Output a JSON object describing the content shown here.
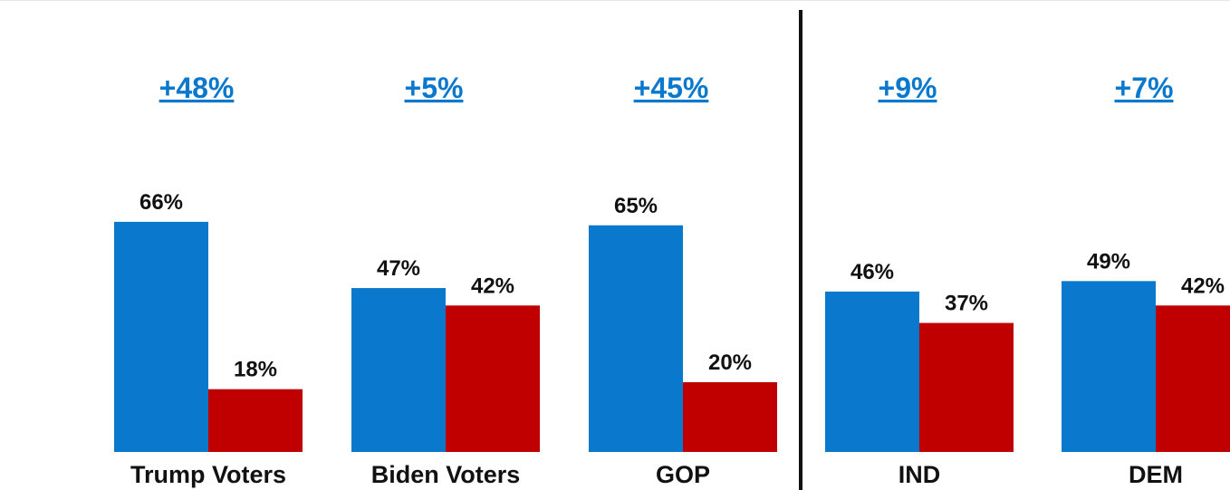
{
  "chart_data": {
    "type": "bar",
    "categories": [
      "Trump Voters",
      "Biden Voters",
      "GOP",
      "IND",
      "DEM"
    ],
    "series": [
      {
        "values": [
          66,
          47,
          65,
          46,
          49
        ],
        "labels": [
          "66%",
          "47%",
          "65%",
          "46%",
          "49%"
        ]
      },
      {
        "values": [
          18,
          42,
          20,
          37,
          42
        ],
        "labels": [
          "18%",
          "42%",
          "20%",
          "37%",
          "42%"
        ]
      }
    ],
    "differences": [
      "+48%",
      "+5%",
      "+45%",
      "+9%",
      "+7%"
    ],
    "ylim": [
      0,
      100
    ],
    "colors": {
      "series_1": "#0a78cd",
      "series_2": "#c00000",
      "difference": "#0a78cd",
      "divider": "#111111"
    },
    "grid": false
  }
}
